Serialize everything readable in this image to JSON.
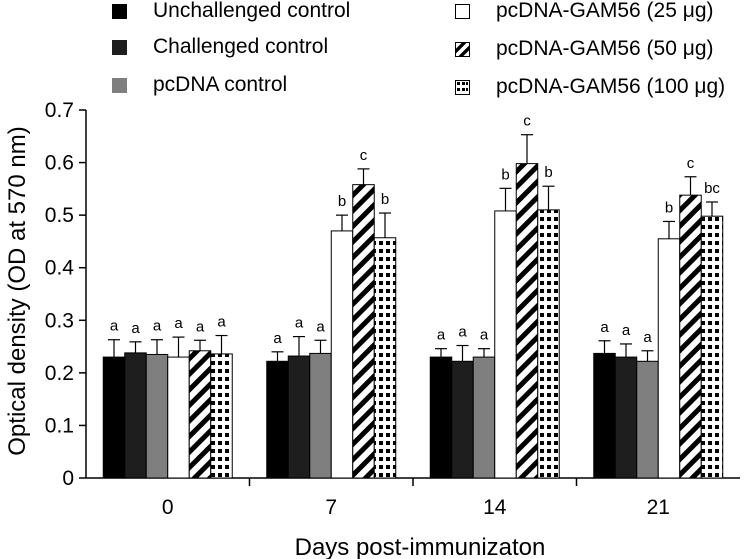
{
  "chart_data": {
    "type": "bar",
    "xlabel": "Days post-immunizaton",
    "ylabel": "Optical density (OD at 570 nm)",
    "ylim": [
      0,
      0.7
    ],
    "yticks": [
      "0",
      "0.1",
      "0.2",
      "0.3",
      "0.4",
      "0.5",
      "0.6",
      "0.7"
    ],
    "categories": [
      "0",
      "7",
      "14",
      "21"
    ],
    "legend_position": "top",
    "grid": false,
    "series": [
      {
        "name": "Unchallenged control",
        "pattern": "black",
        "values": [
          0.23,
          0.222,
          0.23,
          0.237
        ],
        "errors": [
          0.033,
          0.018,
          0.016,
          0.024
        ],
        "labels": [
          "a",
          "a",
          "a",
          "a"
        ]
      },
      {
        "name": "Challenged control",
        "pattern": "darkgray",
        "values": [
          0.238,
          0.232,
          0.222,
          0.23
        ],
        "errors": [
          0.021,
          0.037,
          0.03,
          0.025
        ],
        "labels": [
          "a",
          "a",
          "a",
          "a"
        ]
      },
      {
        "name": "pcDNA control",
        "pattern": "gray",
        "values": [
          0.235,
          0.237,
          0.23,
          0.222
        ],
        "errors": [
          0.028,
          0.025,
          0.016,
          0.02
        ],
        "labels": [
          "a",
          "a",
          "a",
          "a"
        ]
      },
      {
        "name": "pcDNA-GAM56 (25 μg)",
        "pattern": "white",
        "values": [
          0.23,
          0.47,
          0.508,
          0.455
        ],
        "errors": [
          0.038,
          0.03,
          0.043,
          0.033
        ],
        "labels": [
          "a",
          "b",
          "b",
          "b"
        ]
      },
      {
        "name": "pcDNA-GAM56 (50 μg)",
        "pattern": "diagonal",
        "values": [
          0.242,
          0.558,
          0.598,
          0.538
        ],
        "errors": [
          0.02,
          0.03,
          0.055,
          0.035
        ],
        "labels": [
          "a",
          "c",
          "c",
          "c"
        ]
      },
      {
        "name": "pcDNA-GAM56 (100 μg)",
        "pattern": "dotted",
        "values": [
          0.236,
          0.457,
          0.51,
          0.498
        ],
        "errors": [
          0.035,
          0.047,
          0.045,
          0.027
        ],
        "labels": [
          "a",
          "b",
          "b",
          "bc"
        ]
      }
    ]
  }
}
